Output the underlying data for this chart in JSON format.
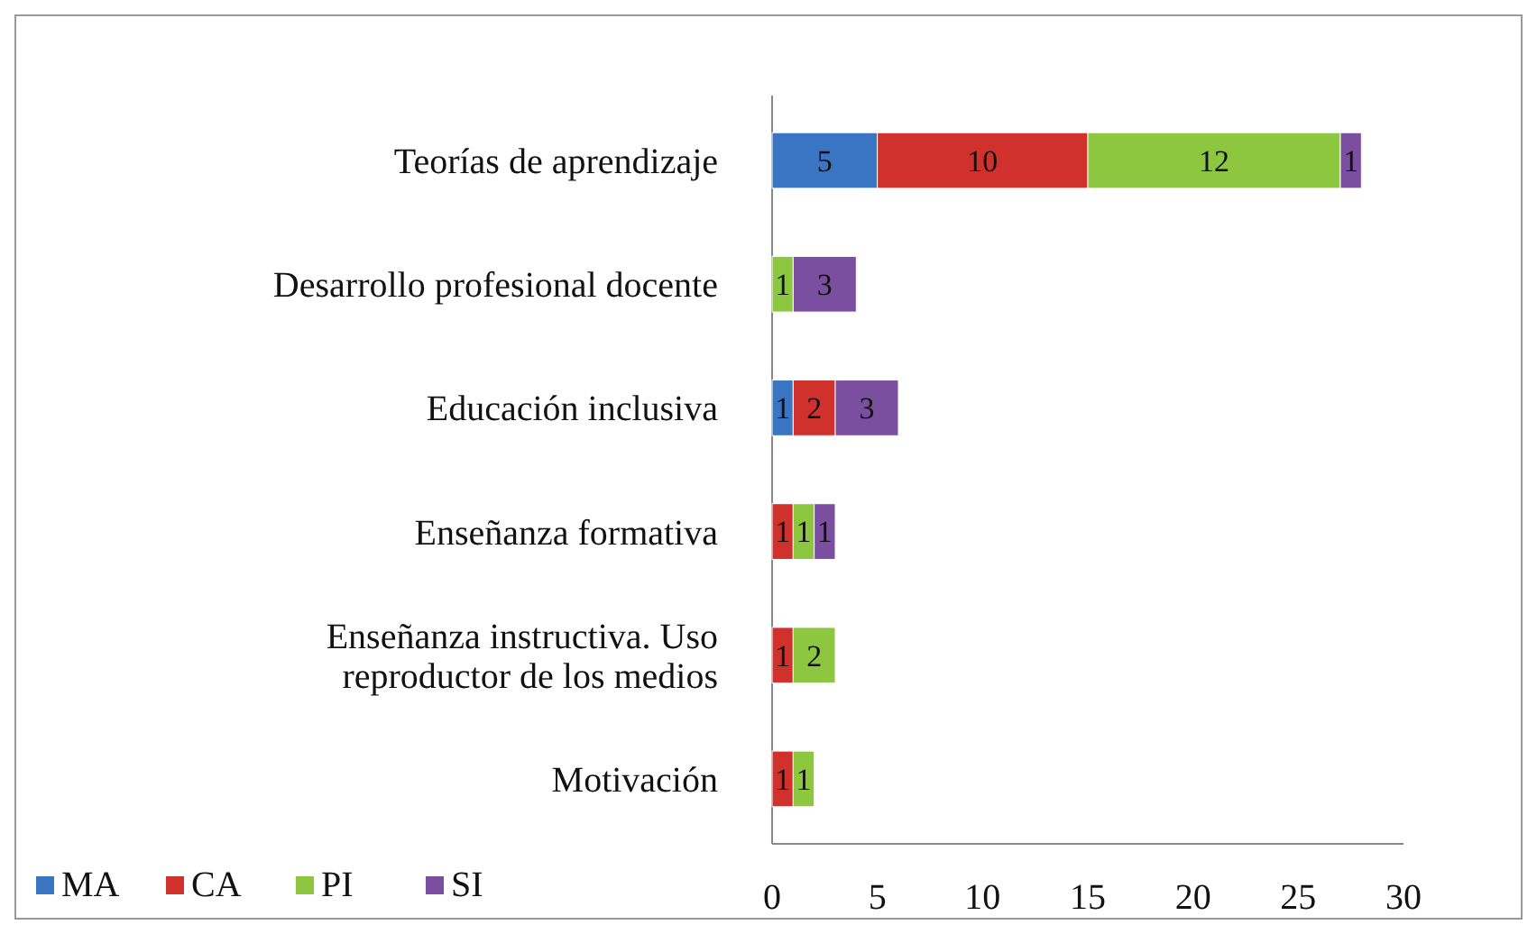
{
  "chart_data": {
    "type": "bar",
    "orientation": "horizontal",
    "stacked": true,
    "data_labels": true,
    "legend": "bottom left",
    "categories": [
      "Teorías de aprendizaje",
      "Desarrollo profesional docente",
      "Educación inclusiva",
      "Enseñanza formativa",
      "Enseñanza instructiva. Uso reproductor de los medios",
      "Motivación"
    ],
    "series": [
      {
        "name": "MA",
        "color": "#3a75c4",
        "values": [
          5,
          null,
          1,
          null,
          null,
          null
        ]
      },
      {
        "name": "CA",
        "color": "#d0312d",
        "values": [
          10,
          null,
          2,
          1,
          1,
          1
        ]
      },
      {
        "name": "PI",
        "color": "#8dc63f",
        "values": [
          12,
          1,
          null,
          1,
          2,
          1
        ]
      },
      {
        "name": "SI",
        "color": "#7b4fa0",
        "values": [
          1,
          3,
          3,
          1,
          null,
          null
        ]
      }
    ],
    "xlim": [
      0,
      30
    ],
    "xticks": [
      0,
      5,
      10,
      15,
      20,
      25,
      30
    ]
  }
}
